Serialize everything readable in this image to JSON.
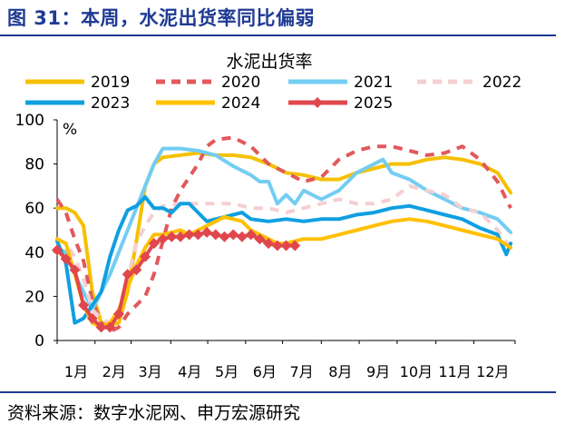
{
  "figure_title": "图 31：本周，水泥出货率同比偏弱",
  "source": "资料来源：数字水泥网、申万宏源研究",
  "chart_data": {
    "type": "line",
    "title": "水泥出货率",
    "ylabel": "%",
    "ylim": [
      0,
      100
    ],
    "yticks": [
      0,
      20,
      40,
      60,
      80,
      100
    ],
    "xlim": [
      0,
      52
    ],
    "x_ticks": [
      {
        "x": 0,
        "label": "1月"
      },
      {
        "x": 4.3,
        "label": "2月"
      },
      {
        "x": 8.4,
        "label": "3月"
      },
      {
        "x": 12.9,
        "label": "4月"
      },
      {
        "x": 17.1,
        "label": "5月"
      },
      {
        "x": 21.4,
        "label": "6月"
      },
      {
        "x": 25.6,
        "label": "7月"
      },
      {
        "x": 30,
        "label": "8月"
      },
      {
        "x": 34.3,
        "label": "9月"
      },
      {
        "x": 38.6,
        "label": "10月"
      },
      {
        "x": 43,
        "label": "11月"
      },
      {
        "x": 47.3,
        "label": "12月"
      }
    ],
    "legend_position": "top",
    "series": [
      {
        "name": "2019",
        "color": "#f5c000",
        "dash": "solid",
        "marker": "none",
        "x": [
          0,
          1,
          2,
          3,
          4,
          5,
          6,
          7,
          8,
          9,
          10,
          11,
          12,
          14,
          16,
          18,
          20,
          22,
          24,
          26,
          28,
          30,
          32,
          34,
          36,
          38,
          40,
          42,
          44,
          46,
          48,
          50,
          51.5
        ],
        "y": [
          60,
          60,
          58,
          52,
          22,
          8,
          7,
          8,
          22,
          45,
          70,
          80,
          83,
          84,
          85,
          84,
          84,
          83,
          80,
          76,
          75,
          73,
          73,
          76,
          78,
          80,
          80,
          82,
          83,
          82,
          80,
          76,
          67
        ]
      },
      {
        "name": "2020",
        "color": "#e2585b",
        "dash": "dash",
        "marker": "none",
        "x": [
          0,
          1,
          2,
          3,
          4,
          5,
          6,
          7,
          8,
          10,
          11,
          12,
          13,
          14,
          16,
          17,
          18,
          20,
          22,
          24,
          26,
          28,
          30,
          32,
          34,
          36,
          38,
          40,
          42,
          44,
          46,
          48,
          50,
          51.5
        ],
        "y": [
          64,
          58,
          46,
          36,
          18,
          8,
          4,
          6,
          12,
          20,
          30,
          45,
          60,
          68,
          80,
          88,
          91,
          92,
          88,
          80,
          76,
          72,
          74,
          82,
          86,
          88,
          88,
          86,
          84,
          85,
          88,
          82,
          72,
          60
        ]
      },
      {
        "name": "2021",
        "color": "#73cdf2",
        "dash": "solid",
        "marker": "none",
        "x": [
          0,
          1,
          2,
          3,
          4,
          5,
          6,
          7,
          8,
          9,
          10,
          11,
          12,
          13,
          14,
          16,
          18,
          20,
          22,
          23,
          24,
          25,
          26,
          27,
          28,
          30,
          32,
          34,
          36,
          37,
          38,
          40,
          42,
          44,
          46,
          48,
          50,
          51.5
        ],
        "y": [
          42,
          40,
          30,
          22,
          14,
          22,
          30,
          40,
          50,
          60,
          70,
          80,
          87,
          87,
          87,
          86,
          84,
          79,
          75,
          72,
          72,
          62,
          66,
          62,
          68,
          64,
          68,
          76,
          80,
          82,
          76,
          73,
          68,
          64,
          60,
          58,
          55,
          49
        ]
      },
      {
        "name": "2022",
        "color": "#f4cfd1",
        "dash": "dash",
        "marker": "none",
        "x": [
          0,
          1,
          2,
          3,
          4,
          5,
          6,
          7,
          8,
          9,
          10,
          11,
          12,
          14,
          16,
          18,
          20,
          22,
          24,
          26,
          28,
          30,
          32,
          34,
          36,
          38,
          40,
          42,
          44,
          46,
          48,
          50,
          51.5
        ],
        "y": [
          46,
          44,
          38,
          28,
          14,
          10,
          8,
          14,
          28,
          44,
          52,
          58,
          61,
          62,
          62,
          62,
          62,
          60,
          60,
          58,
          60,
          62,
          64,
          62,
          62,
          64,
          70,
          68,
          66,
          60,
          58,
          50,
          42
        ]
      },
      {
        "name": "2023",
        "color": "#109fe0",
        "dash": "solid",
        "marker": "none",
        "x": [
          0,
          1,
          2,
          3,
          4,
          5,
          6,
          7,
          8,
          9,
          10,
          11,
          12,
          13,
          14,
          15,
          16,
          17,
          18,
          19,
          20,
          21,
          22,
          24,
          26,
          28,
          30,
          32,
          34,
          36,
          38,
          40,
          42,
          44,
          46,
          48,
          50,
          51,
          51.5
        ],
        "y": [
          45,
          35,
          8,
          10,
          16,
          22,
          38,
          50,
          59,
          61,
          65,
          60,
          60,
          58,
          62,
          62,
          58,
          54,
          55,
          56,
          57,
          58,
          55,
          54,
          55,
          54,
          55,
          55,
          57,
          58,
          60,
          61,
          59,
          57,
          55,
          51,
          48,
          39,
          44
        ]
      },
      {
        "name": "2024",
        "color": "#ffc000",
        "dash": "solid",
        "marker": "none",
        "x": [
          0,
          1,
          2,
          3,
          4,
          5,
          6,
          7,
          8,
          9,
          10,
          11,
          12,
          13,
          14,
          15,
          16,
          17,
          18,
          19,
          20,
          21,
          22,
          23,
          24,
          25,
          26,
          27,
          28,
          30,
          32,
          34,
          36,
          38,
          40,
          42,
          44,
          46,
          48,
          50,
          51.5
        ],
        "y": [
          46,
          44,
          30,
          16,
          8,
          6,
          8,
          14,
          24,
          34,
          42,
          48,
          48,
          49,
          50,
          48,
          50,
          52,
          54,
          56,
          55,
          54,
          50,
          48,
          46,
          44,
          44,
          45,
          46,
          46,
          48,
          50,
          52,
          54,
          55,
          54,
          52,
          50,
          48,
          46,
          42
        ]
      },
      {
        "name": "2025",
        "color": "#e0474c",
        "dash": "solid",
        "marker": "diamond",
        "x": [
          0,
          1,
          2,
          3,
          4,
          5,
          6,
          7,
          8,
          9,
          10,
          11,
          12,
          13,
          14,
          15,
          16,
          17,
          18,
          19,
          20,
          21,
          22,
          23,
          24,
          25,
          26,
          27
        ],
        "y": [
          41,
          37,
          32,
          16,
          10,
          6,
          6,
          12,
          30,
          32,
          38,
          44,
          46,
          47,
          47,
          48,
          48,
          49,
          48,
          47,
          48,
          47,
          48,
          46,
          44,
          43,
          43,
          43
        ]
      }
    ]
  }
}
